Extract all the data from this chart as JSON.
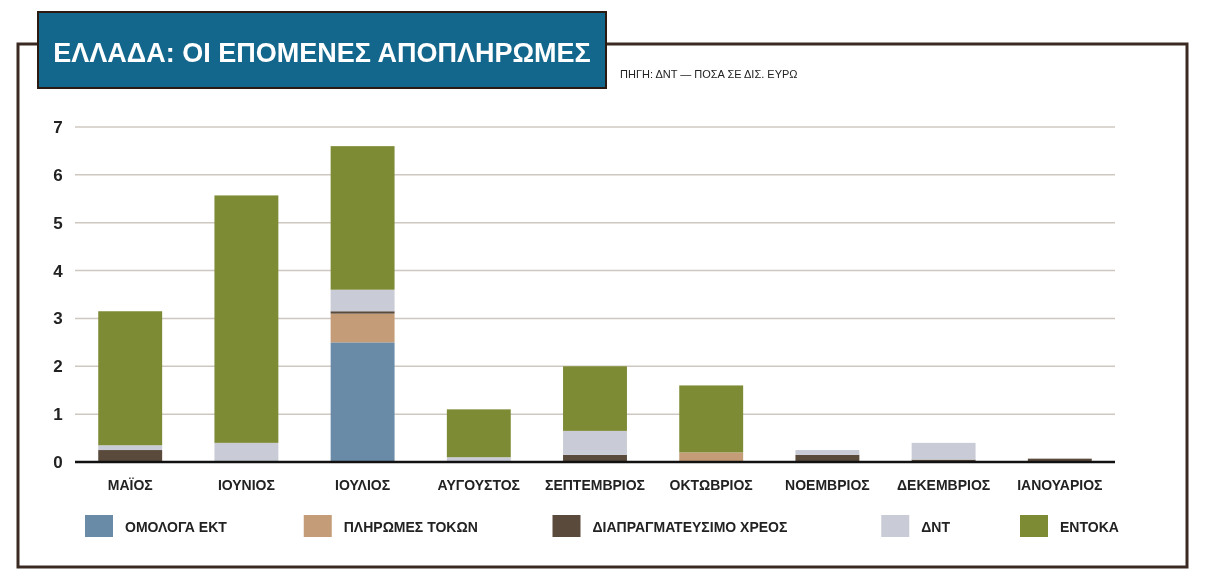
{
  "chart_data": {
    "type": "bar",
    "title": "ΕΛΛΑΔΑ: ΟΙ ΕΠΟΜΕΝΕΣ ΑΠΟΠΛΗΡΩΜΕΣ",
    "annotations": [
      "ΠΗΓΗ: ΔΝΤ — ΠΟΣΑ ΣΕ ΔΙΣ. ΕΥΡΩ"
    ],
    "categories": [
      "ΜΑΪΟΣ",
      "ΙΟΥΝΙΟΣ",
      "ΙΟΥΛΙΟΣ",
      "ΑΥΓΟΥΣΤΟΣ",
      "ΣΕΠΤΕΜΒΡΙΟΣ",
      "ΟΚΤΩΒΡΙΟΣ",
      "ΝΟΕΜΒΡΙΟΣ",
      "ΔΕΚΕΜΒΡΙΟΣ",
      "ΙΑΝΟΥΑΡΙΟΣ"
    ],
    "stacked": true,
    "series": [
      {
        "name": "ΟΜΟΛΟΓΑ ΕΚΤ",
        "color": "#6a8ba8",
        "values": [
          0,
          0,
          2.5,
          0,
          0,
          0,
          0,
          0,
          0
        ]
      },
      {
        "name": "ΠΛΗΡΩΜΕΣ ΤΟΚΩΝ",
        "color": "#c49c78",
        "values": [
          0,
          0.02,
          0.6,
          0,
          0,
          0.2,
          0,
          0,
          0
        ]
      },
      {
        "name": "ΔΙΑΠΡΑΓΜΑΤΕΥΣΙΜΟ ΧΡΕΟΣ",
        "color": "#5a4a3c",
        "values": [
          0.25,
          0,
          0.05,
          0,
          0.15,
          0,
          0.15,
          0.05,
          0.07
        ]
      },
      {
        "name": "ΔΝΤ",
        "color": "#c9cbd6",
        "values": [
          0.1,
          0.38,
          0.45,
          0.1,
          0.5,
          0,
          0.1,
          0.35,
          0
        ]
      },
      {
        "name": "ΕΝΤΟΚΑ",
        "color": "#7e8b35",
        "values": [
          2.8,
          5.17,
          3.0,
          1.0,
          1.35,
          1.4,
          0,
          0,
          0
        ]
      }
    ],
    "ylim": [
      0,
      7
    ],
    "yticks": [
      0,
      1,
      2,
      3,
      4,
      5,
      6,
      7
    ],
    "grid": "y",
    "legend": "bottom"
  }
}
